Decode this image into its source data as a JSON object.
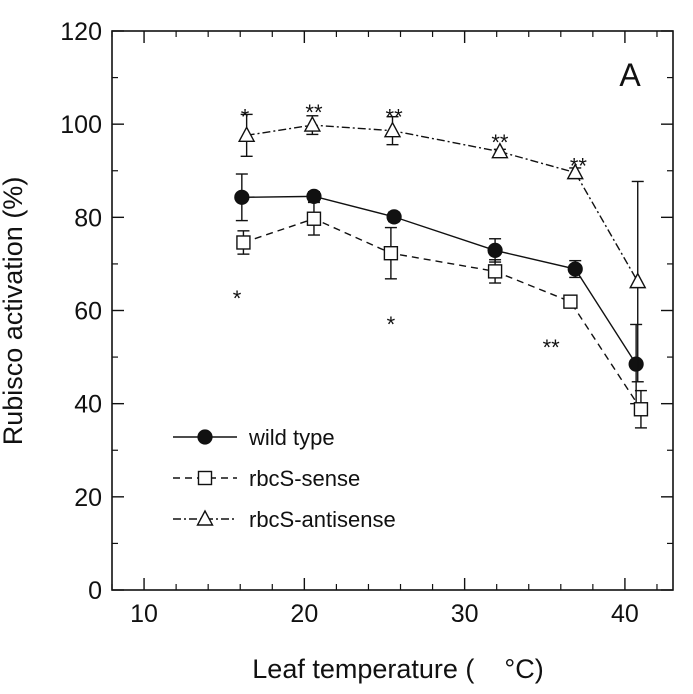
{
  "chart_data": {
    "type": "line",
    "title": "",
    "panel_label": "A",
    "xlabel": "Leaf temperature (    °C)",
    "ylabel": "Rubisco activation (%)",
    "xlim": [
      8,
      43
    ],
    "ylim": [
      0,
      120
    ],
    "x_ticks": [
      10,
      20,
      30,
      40
    ],
    "y_ticks": [
      0,
      20,
      40,
      60,
      80,
      100,
      120
    ],
    "grid": false,
    "legend_position": "bottom-left",
    "series": [
      {
        "name": "wild type",
        "marker": "filled-circle",
        "line_style": "solid",
        "x": [
          16.1,
          20.6,
          25.6,
          31.9,
          36.9,
          40.7
        ],
        "y": [
          84.3,
          84.5,
          80.1,
          72.9,
          68.9,
          48.5
        ],
        "err": [
          5.0,
          1.0,
          1.0,
          2.5,
          1.8,
          8.5
        ]
      },
      {
        "name": "rbcS-sense",
        "marker": "open-square",
        "line_style": "dashed",
        "x": [
          16.2,
          20.6,
          25.4,
          31.9,
          36.6,
          41.0
        ],
        "y": [
          74.6,
          79.7,
          72.3,
          68.4,
          61.9,
          38.8
        ],
        "err": [
          2.5,
          3.5,
          5.5,
          2.5,
          1.0,
          4.0
        ]
      },
      {
        "name": "rbcS-antisense",
        "marker": "open-triangle",
        "line_style": "dash-dot",
        "x": [
          16.4,
          20.5,
          25.5,
          32.2,
          36.9,
          40.8
        ],
        "y": [
          97.6,
          99.8,
          98.6,
          94.1,
          89.6,
          66.2
        ],
        "err": [
          4.5,
          2.0,
          3.0,
          0.5,
          1.0,
          21.5
        ]
      }
    ],
    "annotations": [
      {
        "text": "*",
        "x": 16.3,
        "y": 102.5
      },
      {
        "text": "**",
        "x": 20.6,
        "y": 103.5
      },
      {
        "text": "**",
        "x": 25.6,
        "y": 102.5
      },
      {
        "text": "**",
        "x": 32.2,
        "y": 97.0
      },
      {
        "text": "**",
        "x": 37.1,
        "y": 92.0
      },
      {
        "text": "*",
        "x": 15.8,
        "y": 63.5
      },
      {
        "text": "*",
        "x": 25.4,
        "y": 58.0
      },
      {
        "text": "**",
        "x": 35.4,
        "y": 53.0
      }
    ]
  }
}
